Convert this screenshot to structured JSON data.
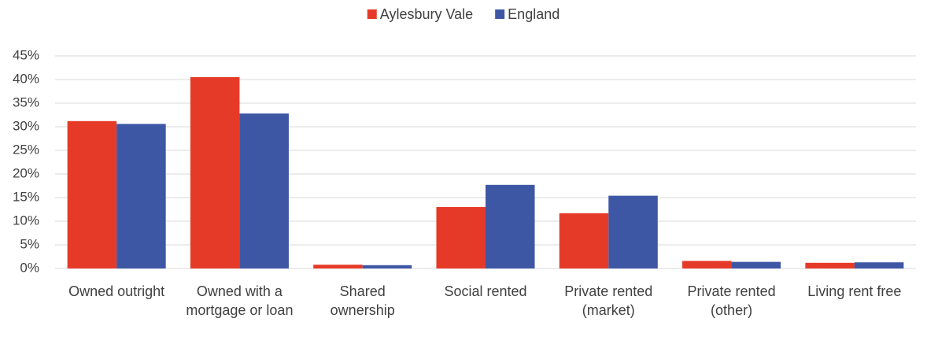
{
  "chart_data": {
    "type": "bar",
    "categories": [
      "Owned outright",
      "Owned with a mortgage or loan",
      "Shared ownership",
      "Social rented",
      "Private rented (market)",
      "Private rented (other)",
      "Living rent free"
    ],
    "series": [
      {
        "name": "Aylesbury Vale",
        "color": "#e63a29",
        "values": [
          31.2,
          40.5,
          0.8,
          13.0,
          11.7,
          1.6,
          1.2
        ]
      },
      {
        "name": "England",
        "color": "#3e57a5",
        "values": [
          30.6,
          32.8,
          0.7,
          17.7,
          15.4,
          1.4,
          1.3
        ]
      }
    ],
    "ylim": [
      0,
      45
    ],
    "yticks": [
      {
        "value": 0,
        "label": "0%"
      },
      {
        "value": 5,
        "label": "5%"
      },
      {
        "value": 10,
        "label": "10%"
      },
      {
        "value": 15,
        "label": "15%"
      },
      {
        "value": 20,
        "label": "20%"
      },
      {
        "value": 25,
        "label": "25%"
      },
      {
        "value": 30,
        "label": "30%"
      },
      {
        "value": 35,
        "label": "35%"
      },
      {
        "value": 40,
        "label": "40%"
      },
      {
        "value": 45,
        "label": "45%"
      }
    ],
    "grid": true,
    "legend": "top"
  }
}
